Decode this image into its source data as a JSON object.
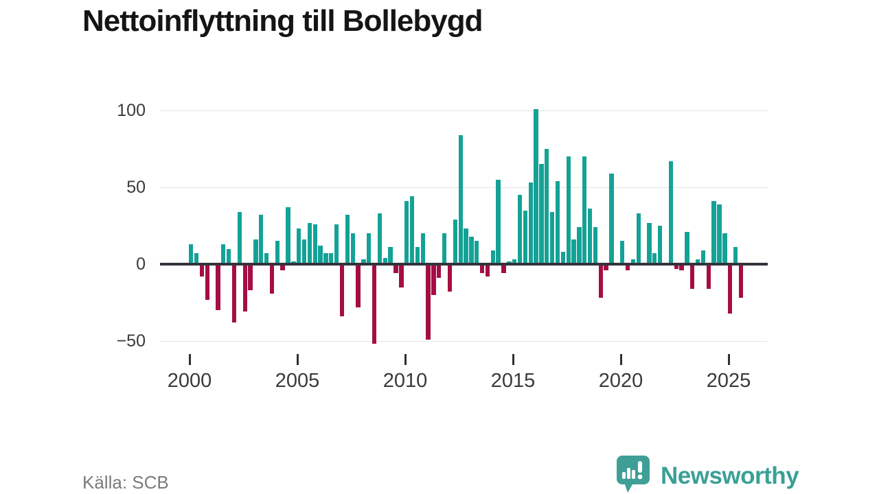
{
  "title": "Nettoinflyttning till Bollebygd",
  "source": "Källa: SCB",
  "logo": {
    "brand": "Newsworthy",
    "color": "#3aa096"
  },
  "chart_data": {
    "type": "bar",
    "title": "Nettoinflyttning till Bollebygd",
    "xlabel": "",
    "ylabel": "",
    "frequency": "quarterly",
    "x_start": "2000-Q1",
    "x_end": "2025-Q3",
    "x_tick_labels": [
      "2000",
      "2005",
      "2010",
      "2015",
      "2020",
      "2025"
    ],
    "y_ticks": [
      {
        "value": 100,
        "label": "100"
      },
      {
        "value": 50,
        "label": "50"
      },
      {
        "value": 0,
        "label": "0"
      },
      {
        "value": -50,
        "label": "−50"
      }
    ],
    "ylim": [
      -60,
      110
    ],
    "grid": "horizontal",
    "legend": "none",
    "colors": {
      "positive": "#14a296",
      "negative": "#a50d45"
    },
    "series_by_year": [
      {
        "year": 2000,
        "values": [
          13,
          7,
          -8,
          -23
        ]
      },
      {
        "year": 2001,
        "values": [
          0,
          -30,
          13,
          10
        ]
      },
      {
        "year": 2002,
        "values": [
          -38,
          34,
          -31,
          -17
        ]
      },
      {
        "year": 2003,
        "values": [
          16,
          32,
          7,
          -19
        ]
      },
      {
        "year": 2004,
        "values": [
          15,
          -4,
          37,
          2
        ]
      },
      {
        "year": 2005,
        "values": [
          23,
          16,
          27,
          26
        ]
      },
      {
        "year": 2006,
        "values": [
          12,
          7,
          7,
          26
        ]
      },
      {
        "year": 2007,
        "values": [
          -34,
          32,
          20,
          -28
        ]
      },
      {
        "year": 2008,
        "values": [
          3,
          20,
          -52,
          33
        ]
      },
      {
        "year": 2009,
        "values": [
          4,
          11,
          -6,
          -15
        ]
      },
      {
        "year": 2010,
        "values": [
          41,
          44,
          11,
          20
        ]
      },
      {
        "year": 2011,
        "values": [
          -49,
          -20,
          -9,
          20
        ]
      },
      {
        "year": 2012,
        "values": [
          -18,
          29,
          84,
          23
        ]
      },
      {
        "year": 2013,
        "values": [
          18,
          15,
          -6,
          -8
        ]
      },
      {
        "year": 2014,
        "values": [
          9,
          55,
          -6,
          2
        ]
      },
      {
        "year": 2015,
        "values": [
          3,
          45,
          35,
          53
        ]
      },
      {
        "year": 2016,
        "values": [
          101,
          65,
          75,
          34
        ]
      },
      {
        "year": 2017,
        "values": [
          54,
          8,
          70,
          16
        ]
      },
      {
        "year": 2018,
        "values": [
          24,
          70,
          36,
          24
        ]
      },
      {
        "year": 2019,
        "values": [
          -22,
          -4,
          59,
          0
        ]
      },
      {
        "year": 2020,
        "values": [
          15,
          -4,
          3,
          33
        ]
      },
      {
        "year": 2021,
        "values": [
          0,
          27,
          7,
          25
        ]
      },
      {
        "year": 2022,
        "values": [
          0,
          67,
          -3,
          -4
        ]
      },
      {
        "year": 2023,
        "values": [
          21,
          -16,
          3,
          9
        ]
      },
      {
        "year": 2024,
        "values": [
          -16,
          41,
          39,
          20
        ]
      },
      {
        "year": 2025,
        "values": [
          -32,
          11,
          -22
        ]
      }
    ]
  }
}
